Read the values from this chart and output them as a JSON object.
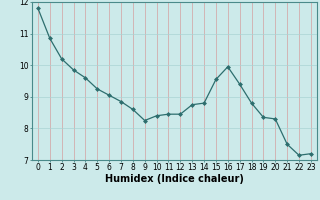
{
  "x": [
    0,
    1,
    2,
    3,
    4,
    5,
    6,
    7,
    8,
    9,
    10,
    11,
    12,
    13,
    14,
    15,
    16,
    17,
    18,
    19,
    20,
    21,
    22,
    23
  ],
  "y": [
    11.8,
    10.85,
    10.2,
    9.85,
    9.6,
    9.25,
    9.05,
    8.85,
    8.6,
    8.25,
    8.4,
    8.45,
    8.45,
    8.75,
    8.8,
    9.55,
    9.95,
    9.4,
    8.8,
    8.35,
    8.3,
    7.5,
    7.15,
    7.2
  ],
  "line_color": "#2d6e6e",
  "marker": "D",
  "marker_size": 2.0,
  "line_width": 0.9,
  "xlabel": "Humidex (Indice chaleur)",
  "xlabel_fontsize": 7,
  "ylim": [
    7,
    12
  ],
  "xlim": [
    -0.5,
    23.5
  ],
  "yticks": [
    7,
    8,
    9,
    10,
    11,
    12
  ],
  "xticks": [
    0,
    1,
    2,
    3,
    4,
    5,
    6,
    7,
    8,
    9,
    10,
    11,
    12,
    13,
    14,
    15,
    16,
    17,
    18,
    19,
    20,
    21,
    22,
    23
  ],
  "bg_color": "#cceaea",
  "grid_color": "#aad4d4",
  "tick_fontsize": 5.5,
  "spine_color": "#4a8a8a",
  "xlabel_fontweight": "bold"
}
